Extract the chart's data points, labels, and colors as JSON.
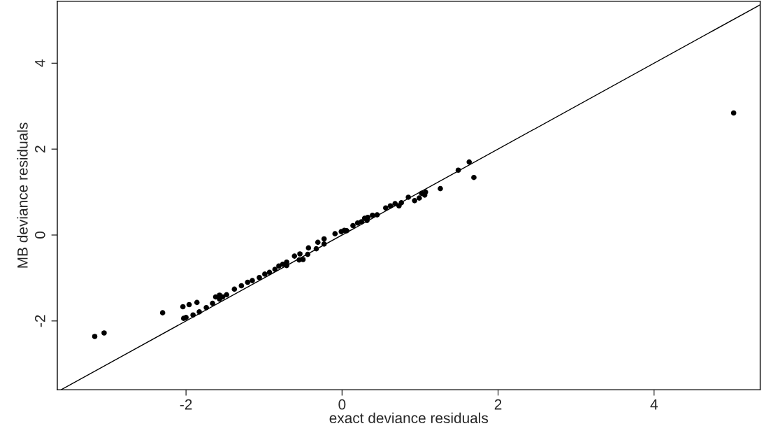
{
  "chart_data": {
    "type": "scatter",
    "xlabel": "exact deviance residuals",
    "ylabel": "MB deviance residuals",
    "xlim": [
      -3.65,
      5.36
    ],
    "ylim": [
      -3.6,
      5.44
    ],
    "xticks": [
      -2,
      0,
      2,
      4
    ],
    "yticks": [
      -2,
      0,
      2,
      4
    ],
    "grid": false,
    "marker": "circle",
    "series": [
      {
        "color": "#000000",
        "x": [
          -3.17,
          -3.05,
          -2.3,
          -2.04,
          -1.96,
          -1.86,
          -2.03,
          -2.0,
          -1.91,
          -1.83,
          -1.74,
          -1.66,
          -1.62,
          -1.57,
          -1.57,
          -1.53,
          -1.48,
          -1.38,
          -1.29,
          -1.21,
          -1.15,
          -1.06,
          -0.99,
          -0.93,
          -0.86,
          -0.81,
          -0.76,
          -0.71,
          -0.71,
          -0.61,
          -0.54,
          -0.55,
          -0.5,
          -0.44,
          -0.43,
          -0.33,
          -0.31,
          -0.23,
          -0.23,
          -0.09,
          -0.01,
          0.03,
          0.06,
          0.14,
          0.2,
          0.25,
          0.29,
          0.33,
          0.32,
          0.39,
          0.45,
          0.56,
          0.62,
          0.68,
          0.73,
          0.76,
          0.85,
          0.93,
          0.99,
          1.02,
          1.06,
          1.07,
          1.26,
          1.49,
          1.63,
          1.69,
          5.02
        ],
        "values": [
          -2.36,
          -2.28,
          -1.81,
          -1.67,
          -1.62,
          -1.57,
          -1.94,
          -1.92,
          -1.86,
          -1.79,
          -1.69,
          -1.59,
          -1.44,
          -1.49,
          -1.4,
          -1.44,
          -1.39,
          -1.26,
          -1.18,
          -1.1,
          -1.06,
          -0.99,
          -0.91,
          -0.87,
          -0.8,
          -0.72,
          -0.68,
          -0.63,
          -0.71,
          -0.49,
          -0.44,
          -0.58,
          -0.57,
          -0.45,
          -0.3,
          -0.32,
          -0.17,
          -0.09,
          -0.21,
          0.03,
          0.08,
          0.11,
          0.1,
          0.22,
          0.28,
          0.31,
          0.39,
          0.41,
          0.34,
          0.46,
          0.47,
          0.63,
          0.68,
          0.73,
          0.68,
          0.75,
          0.88,
          0.8,
          0.86,
          0.97,
          0.93,
          1.0,
          1.08,
          1.51,
          1.7,
          1.34,
          2.84
        ]
      },
      {
        "type": "line",
        "color": "#000000",
        "marker": "none",
        "line_style": "solid",
        "x": [
          -3.6,
          5.36
        ],
        "values": [
          -3.6,
          5.36
        ]
      }
    ]
  }
}
